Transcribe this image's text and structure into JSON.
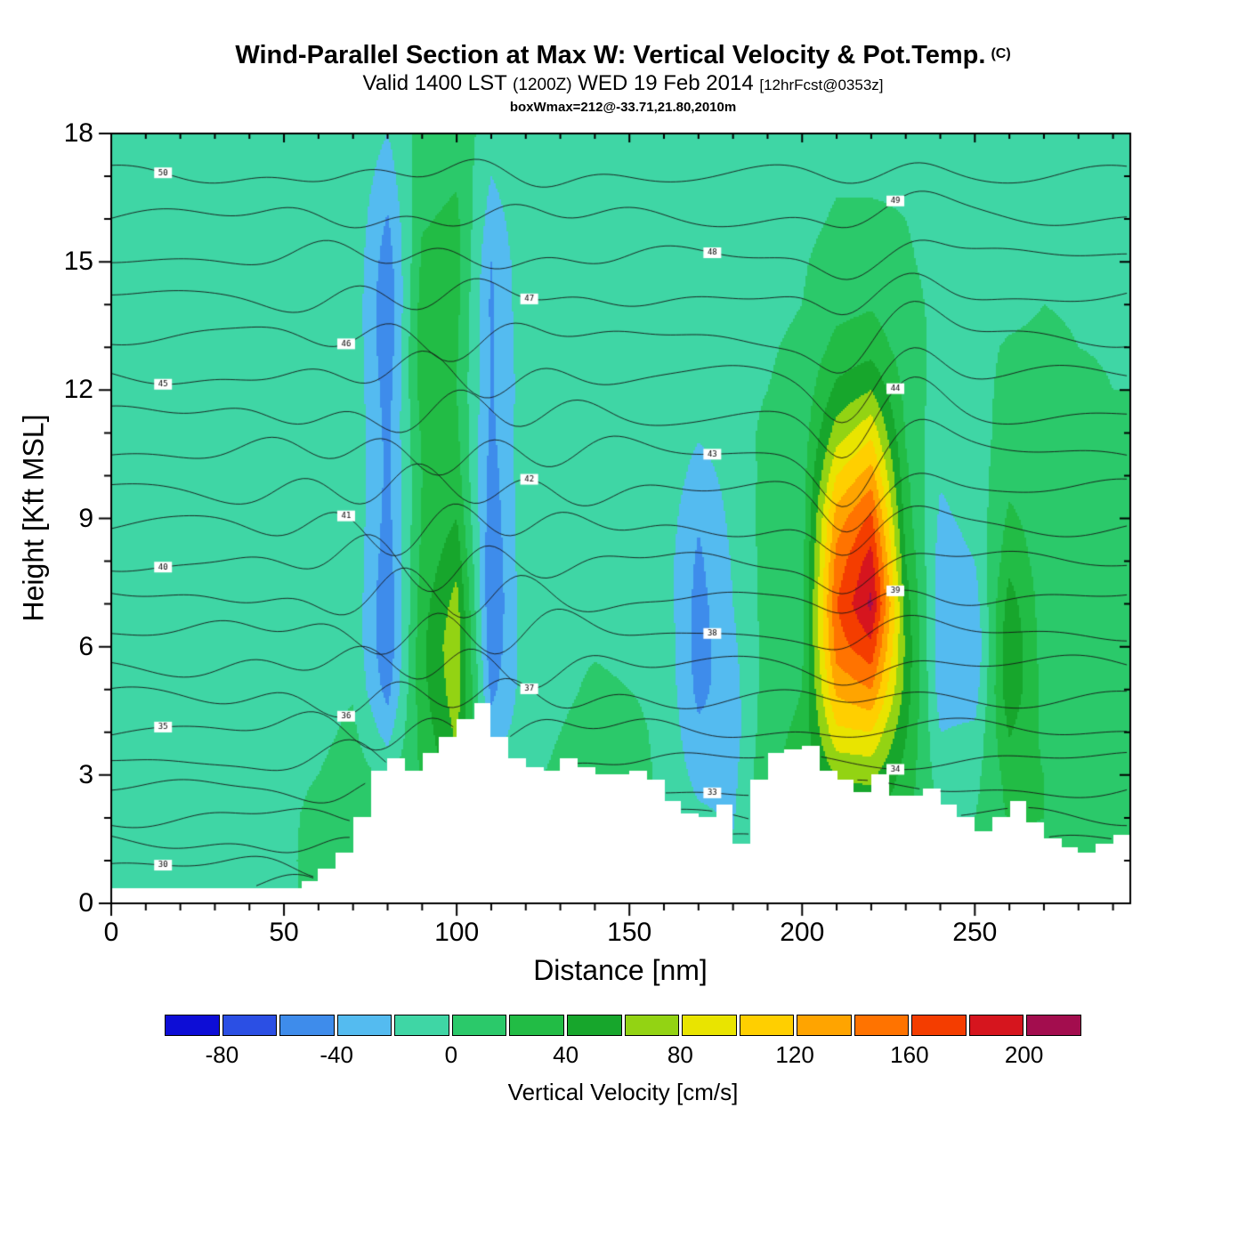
{
  "header": {
    "title": "Wind-Parallel Section at Max W: Vertical Velocity & Pot.Temp.",
    "title_unit": "(C)",
    "valid": "Valid 1400 LST",
    "zulu": "(1200Z)",
    "date": "WED 19 Feb 2014",
    "fcst": "[12hrFcst@0353z]",
    "box_info": "boxWmax=212@-33.71,21.80,2010m"
  },
  "axes": {
    "x": {
      "label": "Distance [nm]",
      "min": 0,
      "max": 295,
      "major_ticks": [
        0,
        50,
        100,
        150,
        200,
        250
      ],
      "minor_step": 10
    },
    "y": {
      "label": "Height [Kft MSL]",
      "min": 0,
      "max": 18,
      "major_ticks": [
        0,
        3,
        6,
        9,
        12,
        15,
        18
      ],
      "minor_step": 1
    }
  },
  "colorbar": {
    "label": "Vertical Velocity [cm/s]",
    "units": "cm/s",
    "levels": [
      -100,
      -80,
      -60,
      -40,
      -20,
      0,
      20,
      40,
      60,
      80,
      100,
      120,
      140,
      160,
      180,
      200,
      220
    ],
    "colors": [
      "#0d0dd6",
      "#2b4fe4",
      "#3e8ceb",
      "#54bbf0",
      "#3fd6a5",
      "#2bc96a",
      "#22bc45",
      "#17a62c",
      "#93d313",
      "#e9e400",
      "#ffcf00",
      "#ffa400",
      "#ff7300",
      "#f43d00",
      "#d6151e",
      "#a30d4e"
    ],
    "tick_labels": [
      -80,
      -40,
      0,
      40,
      80,
      120,
      160,
      200
    ]
  },
  "chart_data": {
    "type": "heatmap",
    "title": "Wind-Parallel Section at Max W: Vertical Velocity & Pot.Temp. (C)",
    "xlabel": "Distance [nm]",
    "ylabel": "Height [Kft MSL]",
    "xlim": [
      0,
      295
    ],
    "ylim": [
      0,
      18
    ],
    "fill_field": "vertical velocity (cm/s)",
    "contour_field": "potential temperature (C)",
    "max_updraft_cm_s": 205,
    "max_updraft_location_nm": 218,
    "x_nm": [
      0,
      10,
      20,
      30,
      40,
      50,
      60,
      70,
      80,
      90,
      100,
      110,
      120,
      130,
      140,
      150,
      160,
      170,
      180,
      190,
      200,
      210,
      220,
      230,
      240,
      250,
      260,
      270,
      280,
      290
    ],
    "z_kft": [
      0,
      1,
      2,
      3,
      4,
      5,
      6,
      7,
      8,
      9,
      10,
      11,
      12,
      13,
      14,
      15,
      16,
      17,
      18
    ],
    "w_grid": [
      [
        -5,
        -5,
        -5,
        -5,
        -5,
        -5,
        -5,
        -5,
        -5,
        -5,
        -5,
        -5,
        -5,
        -5,
        -5,
        -5,
        -5,
        -5,
        -5
      ],
      [
        -12,
        -8,
        -5,
        -5,
        -5,
        -5,
        -5,
        -5,
        -5,
        -5,
        -5,
        -12,
        -14,
        -12,
        -8,
        -5,
        -5,
        -5,
        -5
      ],
      [
        -14,
        -14,
        -8,
        -5,
        -5,
        -5,
        -5,
        -5,
        -5,
        -5,
        -5,
        -5,
        -5,
        -5,
        -5,
        -5,
        -5,
        -5,
        -5
      ],
      [
        -8,
        -14,
        -14,
        -8,
        -5,
        -5,
        -5,
        -5,
        -5,
        -5,
        -5,
        -5,
        -5,
        -5,
        -5,
        -5,
        -5,
        -5,
        -5
      ],
      [
        -5,
        -8,
        -12,
        -8,
        -5,
        -5,
        -5,
        -5,
        -5,
        -5,
        -5,
        -5,
        -5,
        -5,
        -5,
        -5,
        -5,
        -5,
        -5
      ],
      [
        -5,
        -5,
        -5,
        -5,
        -5,
        -5,
        -5,
        -5,
        -5,
        -5,
        -5,
        -5,
        -5,
        -5,
        -5,
        -5,
        -5,
        -5,
        -5
      ],
      [
        6,
        8,
        6,
        0,
        -5,
        -5,
        -5,
        -5,
        -5,
        -5,
        -5,
        -5,
        -5,
        -5,
        -5,
        -5,
        -5,
        -5,
        -5
      ],
      [
        0,
        8,
        14,
        10,
        4,
        -2,
        -5,
        -5,
        -5,
        -5,
        -5,
        -5,
        -5,
        -5,
        -5,
        -5,
        -5,
        -5,
        -5
      ],
      [
        0,
        0,
        0,
        -5,
        -28,
        -48,
        -58,
        -58,
        -52,
        -48,
        -45,
        -46,
        -50,
        -56,
        -58,
        -52,
        -42,
        -30,
        -20
      ],
      [
        5,
        10,
        16,
        22,
        28,
        34,
        36,
        32,
        26,
        22,
        20,
        24,
        30,
        34,
        30,
        24,
        18,
        12,
        8
      ],
      [
        20,
        30,
        42,
        52,
        64,
        72,
        76,
        68,
        54,
        40,
        30,
        24,
        20,
        22,
        26,
        28,
        24,
        18,
        12
      ],
      [
        0,
        0,
        -5,
        -12,
        -30,
        -46,
        -56,
        -60,
        -58,
        -54,
        -50,
        -45,
        -42,
        -42,
        -44,
        -40,
        -30,
        -20,
        -10
      ],
      [
        -5,
        -5,
        -5,
        -6,
        -10,
        -10,
        -8,
        -6,
        -5,
        -5,
        -5,
        -6,
        -10,
        -8,
        -5,
        -5,
        -5,
        -5,
        -5
      ],
      [
        5,
        10,
        10,
        5,
        0,
        -5,
        -5,
        -5,
        -5,
        -5,
        -5,
        -5,
        -5,
        -5,
        -5,
        -5,
        -5,
        -5,
        -5
      ],
      [
        6,
        12,
        16,
        14,
        10,
        4,
        -2,
        -5,
        -5,
        -5,
        -5,
        -5,
        -5,
        -5,
        -5,
        -5,
        -5,
        -5,
        -5
      ],
      [
        0,
        6,
        10,
        10,
        6,
        0,
        -5,
        -5,
        -5,
        -5,
        -5,
        -5,
        -5,
        -5,
        -5,
        -5,
        -5,
        -5,
        -5
      ],
      [
        -5,
        -5,
        -5,
        -5,
        -5,
        -5,
        -6,
        -8,
        -10,
        -8,
        -6,
        -5,
        -5,
        -5,
        -5,
        -5,
        -5,
        -5,
        -5
      ],
      [
        -6,
        -10,
        -16,
        -26,
        -36,
        -46,
        -50,
        -48,
        -44,
        -38,
        -28,
        -18,
        -12,
        -8,
        -6,
        -5,
        -5,
        -5,
        -5
      ],
      [
        -10,
        -16,
        -22,
        -26,
        -30,
        -28,
        -24,
        -20,
        -18,
        -15,
        -13,
        -10,
        -8,
        -6,
        -5,
        -5,
        -5,
        -5,
        -5
      ],
      [
        8,
        14,
        18,
        18,
        14,
        10,
        8,
        8,
        8,
        8,
        6,
        5,
        0,
        -2,
        -5,
        -5,
        -5,
        -5,
        -5
      ],
      [
        10,
        16,
        22,
        26,
        24,
        20,
        16,
        14,
        12,
        10,
        10,
        8,
        6,
        4,
        0,
        -2,
        -5,
        -5,
        -5
      ],
      [
        15,
        25,
        42,
        62,
        95,
        125,
        150,
        160,
        148,
        130,
        100,
        70,
        45,
        26,
        14,
        8,
        2,
        -2,
        -5
      ],
      [
        15,
        26,
        45,
        65,
        100,
        140,
        175,
        205,
        190,
        165,
        130,
        95,
        60,
        32,
        18,
        8,
        2,
        -2,
        -5
      ],
      [
        10,
        16,
        24,
        32,
        42,
        52,
        56,
        50,
        40,
        30,
        24,
        18,
        14,
        10,
        6,
        2,
        0,
        -2,
        -5
      ],
      [
        5,
        5,
        0,
        -10,
        -20,
        -30,
        -35,
        -34,
        -30,
        -24,
        -18,
        -14,
        -10,
        -6,
        -5,
        -5,
        -5,
        -5,
        -5
      ],
      [
        5,
        5,
        0,
        -6,
        -16,
        -30,
        -40,
        -30,
        -20,
        -14,
        -10,
        -8,
        -6,
        -5,
        -5,
        -8,
        -10,
        -8,
        -5
      ],
      [
        10,
        16,
        22,
        28,
        42,
        56,
        60,
        50,
        34,
        24,
        14,
        8,
        5,
        2,
        -5,
        -12,
        -14,
        -10,
        -6
      ],
      [
        10,
        15,
        20,
        20,
        16,
        14,
        10,
        10,
        10,
        10,
        10,
        6,
        5,
        4,
        0,
        -2,
        -5,
        -5,
        -5
      ],
      [
        6,
        10,
        15,
        15,
        14,
        10,
        10,
        10,
        10,
        10,
        6,
        5,
        5,
        0,
        -2,
        -5,
        -5,
        -5,
        -5
      ],
      [
        6,
        10,
        10,
        10,
        10,
        10,
        10,
        6,
        5,
        5,
        5,
        5,
        0,
        -2,
        -5,
        -5,
        -5,
        -5,
        -5
      ]
    ],
    "terrain_x_step_nm": 5,
    "terrain_kft": [
      0.35,
      0.35,
      0.35,
      0.35,
      0.35,
      0.35,
      0.35,
      0.35,
      0.35,
      0.35,
      0.35,
      0.5,
      0.8,
      1.2,
      2.0,
      3.1,
      3.4,
      3.1,
      3.5,
      3.9,
      4.3,
      4.7,
      3.9,
      3.4,
      3.2,
      3.1,
      3.4,
      3.2,
      3.0,
      3.0,
      3.1,
      2.9,
      2.4,
      2.1,
      2.0,
      2.3,
      1.4,
      2.9,
      3.5,
      3.6,
      3.7,
      3.1,
      2.9,
      2.6,
      3.0,
      2.5,
      2.5,
      2.7,
      2.3,
      2.0,
      1.7,
      2.0,
      2.4,
      1.9,
      1.5,
      1.3,
      1.2,
      1.4,
      1.6
    ],
    "isentropes": {
      "theta_min": 29,
      "theta_max": 50,
      "theta_step": 1,
      "theta_surface": 28,
      "theta_top": 51,
      "units": "C",
      "note": "thin black contour lines, wavy over mountains near 70-130 nm, descending fan near updraft at 212 nm"
    }
  }
}
